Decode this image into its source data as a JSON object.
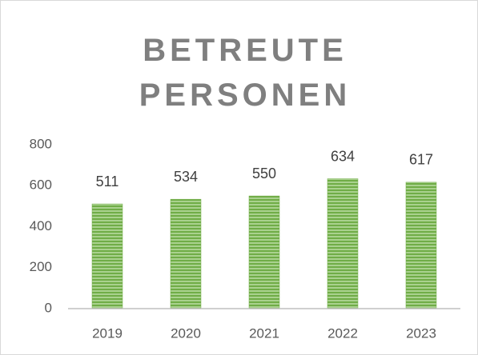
{
  "chart_data": {
    "type": "bar",
    "title": "BETREUTE PERSONEN",
    "categories": [
      "2019",
      "2020",
      "2021",
      "2022",
      "2023"
    ],
    "values": [
      511,
      534,
      550,
      634,
      617
    ],
    "color": "#70ad47",
    "ylim": [
      0,
      800
    ],
    "yticks": [
      0,
      200,
      400,
      600,
      800
    ],
    "grid": false
  }
}
